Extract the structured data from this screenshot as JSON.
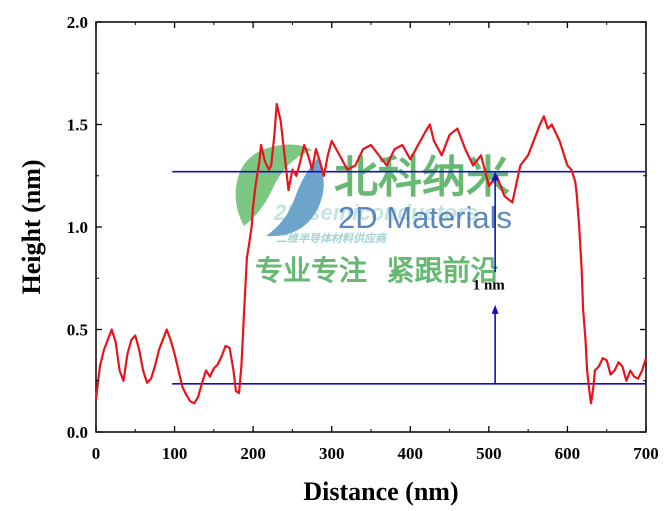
{
  "chart_data": {
    "type": "line",
    "title": "",
    "xlabel": "Distance (nm)",
    "ylabel": "Height (nm)",
    "xlim": [
      0,
      700
    ],
    "ylim": [
      0.0,
      2.0
    ],
    "x_ticks": [
      0,
      100,
      200,
      300,
      400,
      500,
      600,
      700
    ],
    "y_ticks": [
      0.0,
      0.5,
      1.0,
      1.5,
      2.0
    ],
    "x_tick_labels": [
      "0",
      "100",
      "200",
      "300",
      "400",
      "500",
      "600",
      "700"
    ],
    "y_tick_labels": [
      "0.0",
      "0.5",
      "1.0",
      "1.5",
      "2.0"
    ],
    "grid": false,
    "series": [
      {
        "color": "#e8141c",
        "x": [
          0,
          5,
          10,
          15,
          20,
          25,
          30,
          35,
          40,
          45,
          50,
          55,
          60,
          65,
          70,
          75,
          80,
          85,
          90,
          95,
          100,
          105,
          110,
          115,
          120,
          125,
          130,
          135,
          140,
          145,
          150,
          155,
          160,
          165,
          170,
          175,
          178,
          182,
          185,
          188,
          190,
          192,
          195,
          198,
          200,
          203,
          205,
          208,
          210,
          215,
          220,
          223,
          227,
          230,
          235,
          240,
          245,
          250,
          255,
          260,
          265,
          270,
          275,
          280,
          285,
          290,
          295,
          300,
          310,
          320,
          330,
          340,
          350,
          360,
          370,
          380,
          390,
          400,
          410,
          420,
          425,
          430,
          440,
          450,
          460,
          470,
          480,
          490,
          500,
          510,
          520,
          530,
          540,
          550,
          560,
          565,
          570,
          575,
          580,
          590,
          600,
          605,
          610,
          612,
          615,
          618,
          620,
          623,
          625,
          628,
          630,
          633,
          635,
          640,
          645,
          650,
          655,
          660,
          665,
          670,
          675,
          680,
          685,
          690,
          695,
          700
        ],
        "y": [
          0.16,
          0.32,
          0.4,
          0.45,
          0.5,
          0.44,
          0.3,
          0.25,
          0.38,
          0.45,
          0.47,
          0.4,
          0.3,
          0.24,
          0.26,
          0.32,
          0.4,
          0.45,
          0.5,
          0.45,
          0.38,
          0.3,
          0.22,
          0.18,
          0.15,
          0.14,
          0.17,
          0.24,
          0.3,
          0.27,
          0.31,
          0.33,
          0.37,
          0.42,
          0.41,
          0.3,
          0.2,
          0.19,
          0.32,
          0.55,
          0.7,
          0.85,
          0.92,
          1.0,
          1.1,
          1.2,
          1.25,
          1.32,
          1.4,
          1.32,
          1.28,
          1.3,
          1.45,
          1.6,
          1.52,
          1.35,
          1.18,
          1.28,
          1.25,
          1.32,
          1.4,
          1.35,
          1.28,
          1.38,
          1.32,
          1.25,
          1.35,
          1.42,
          1.35,
          1.28,
          1.3,
          1.38,
          1.4,
          1.35,
          1.3,
          1.38,
          1.4,
          1.33,
          1.4,
          1.47,
          1.5,
          1.42,
          1.35,
          1.45,
          1.48,
          1.38,
          1.3,
          1.35,
          1.2,
          1.25,
          1.15,
          1.12,
          1.3,
          1.35,
          1.45,
          1.5,
          1.54,
          1.48,
          1.5,
          1.42,
          1.3,
          1.28,
          1.22,
          1.15,
          1.0,
          0.8,
          0.6,
          0.45,
          0.3,
          0.2,
          0.14,
          0.22,
          0.3,
          0.32,
          0.36,
          0.35,
          0.28,
          0.3,
          0.34,
          0.32,
          0.25,
          0.3,
          0.27,
          0.26,
          0.3,
          0.36
        ]
      }
    ],
    "reference_lines": [
      {
        "type": "horizontal",
        "y": 1.27,
        "x_start": 97,
        "x_end": 700,
        "color": "#1010c8"
      },
      {
        "type": "horizontal",
        "y": 0.235,
        "x_start": 97,
        "x_end": 700,
        "color": "#1010c8"
      }
    ],
    "arrows": [
      {
        "x": 508,
        "from_y": 0.235,
        "to_y": 0.62,
        "color": "#1010c8"
      },
      {
        "x": 508,
        "from_y": 0.78,
        "to_y": 1.27,
        "color": "#1010c8"
      }
    ],
    "annotations": [
      {
        "text": "1 nm",
        "x": 510,
        "y": 0.72
      }
    ]
  },
  "watermark": {
    "chinese_name": "北科纳米",
    "english_name": "2D Materials",
    "faint_text": "2D semiconductors",
    "faint_subtitle": "二维半导体材料供应商",
    "slogan": "专业专注  紧跟前沿",
    "colors": {
      "green": "#2e9e3e",
      "blue": "#1f5aa6",
      "teal": "#3aa3a0"
    }
  }
}
